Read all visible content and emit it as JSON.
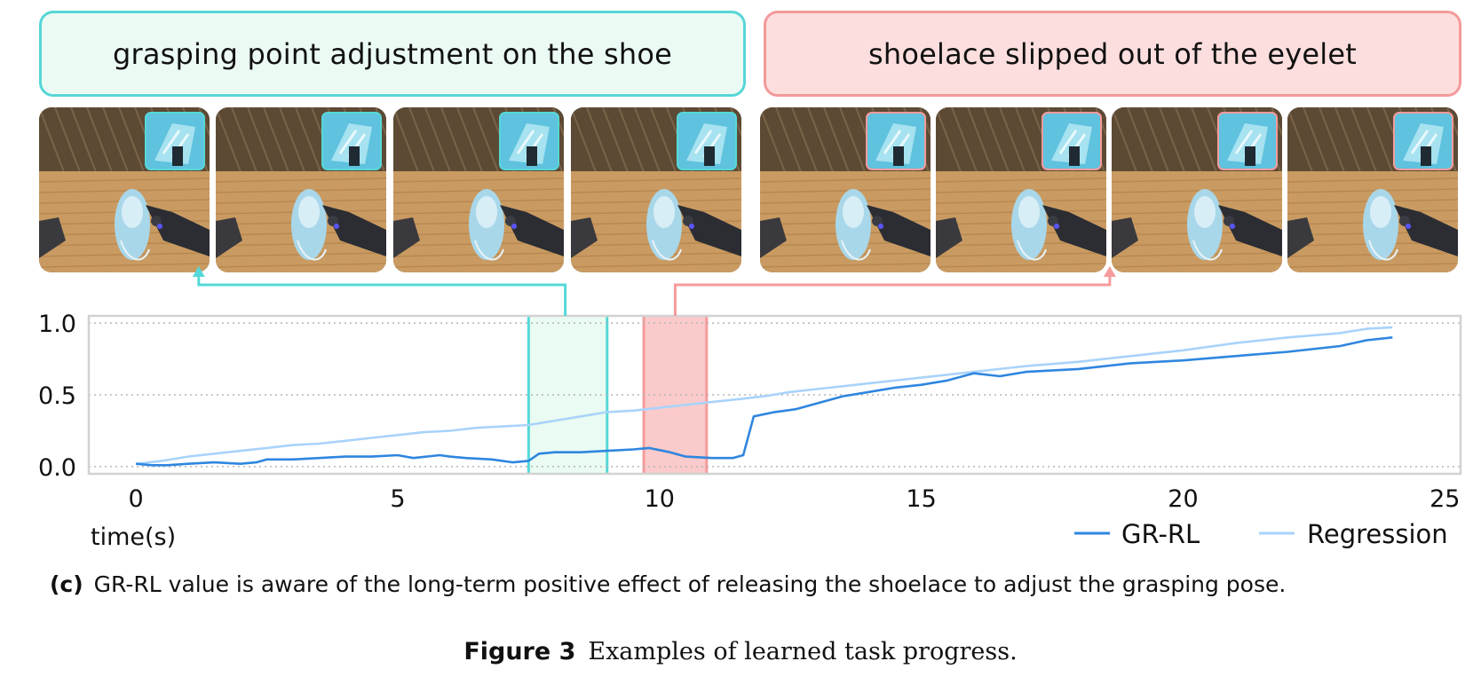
{
  "banners": {
    "left": "grasping point adjustment on the shoe",
    "right": "shoelace slipped out of the eyelet"
  },
  "frames": [
    {
      "group": "left"
    },
    {
      "group": "left"
    },
    {
      "group": "left"
    },
    {
      "group": "left"
    },
    {
      "group": "right"
    },
    {
      "group": "right"
    },
    {
      "group": "right"
    },
    {
      "group": "right"
    }
  ],
  "colors": {
    "teal": "#55d8d8",
    "salmon": "#f59b9b",
    "grrl": "#2f86df",
    "regression": "#a9d3fa"
  },
  "chart_data": {
    "type": "line",
    "xlabel": "time(s)",
    "ylabel": "",
    "xlim": [
      -0.9,
      25.3
    ],
    "ylim": [
      -0.05,
      1.05
    ],
    "xticks": [
      0,
      5,
      10,
      15,
      20,
      25
    ],
    "yticks": [
      0.0,
      0.5,
      1.0
    ],
    "ytick_labels": [
      "0.0",
      "0.5",
      "1.0"
    ],
    "grid": "horizontal dotted",
    "legend": "bottom-right",
    "highlight_regions": [
      {
        "x0": 7.5,
        "x1": 9.0,
        "color": "teal"
      },
      {
        "x0": 9.7,
        "x1": 10.9,
        "color": "salmon"
      }
    ],
    "series": [
      {
        "name": "GR-RL",
        "color": "#2f86df",
        "x": [
          0,
          0.3,
          0.6,
          1.0,
          1.5,
          2.0,
          2.3,
          2.5,
          3.0,
          3.5,
          4.0,
          4.5,
          5.0,
          5.3,
          5.8,
          6.0,
          6.3,
          6.8,
          7.2,
          7.5,
          7.7,
          8.0,
          8.5,
          9.0,
          9.5,
          9.8,
          10.2,
          10.5,
          11.0,
          11.4,
          11.6,
          11.8,
          12.2,
          12.6,
          13.0,
          13.5,
          14.0,
          14.5,
          15.0,
          15.5,
          16.0,
          16.5,
          17.0,
          18.0,
          19.0,
          20.0,
          21.0,
          22.0,
          23.0,
          23.5,
          24.0
        ],
        "y": [
          0.02,
          0.01,
          0.01,
          0.02,
          0.03,
          0.02,
          0.03,
          0.05,
          0.05,
          0.06,
          0.07,
          0.07,
          0.08,
          0.06,
          0.08,
          0.07,
          0.06,
          0.05,
          0.03,
          0.04,
          0.09,
          0.1,
          0.1,
          0.11,
          0.12,
          0.13,
          0.1,
          0.07,
          0.06,
          0.06,
          0.08,
          0.35,
          0.38,
          0.4,
          0.44,
          0.49,
          0.52,
          0.55,
          0.57,
          0.6,
          0.65,
          0.63,
          0.66,
          0.68,
          0.72,
          0.74,
          0.77,
          0.8,
          0.84,
          0.88,
          0.9
        ]
      },
      {
        "name": "Regression",
        "color": "#a9d3fa",
        "x": [
          0,
          0.5,
          1.0,
          1.5,
          2.0,
          2.5,
          3.0,
          3.5,
          4.0,
          4.5,
          5.0,
          5.5,
          6.0,
          6.5,
          7.0,
          7.5,
          8.0,
          8.5,
          9.0,
          9.5,
          10.0,
          10.5,
          11.0,
          11.5,
          12.0,
          12.5,
          13.0,
          13.5,
          14.0,
          14.5,
          15.0,
          15.5,
          16.0,
          17.0,
          18.0,
          19.0,
          20.0,
          21.0,
          22.0,
          23.0,
          23.5,
          24.0
        ],
        "y": [
          0.02,
          0.04,
          0.07,
          0.09,
          0.11,
          0.13,
          0.15,
          0.16,
          0.18,
          0.2,
          0.22,
          0.24,
          0.25,
          0.27,
          0.28,
          0.29,
          0.32,
          0.35,
          0.38,
          0.39,
          0.41,
          0.43,
          0.45,
          0.47,
          0.49,
          0.52,
          0.54,
          0.56,
          0.58,
          0.6,
          0.62,
          0.64,
          0.66,
          0.7,
          0.73,
          0.77,
          0.81,
          0.86,
          0.9,
          0.93,
          0.96,
          0.97
        ]
      }
    ]
  },
  "captions": {
    "sub_label": "(c)",
    "sub_text": "GR-RL value is aware of the long-term positive effect of releasing the shoelace to adjust the grasping pose.",
    "fig_label": "Figure 3",
    "fig_text": "Examples of learned task progress."
  }
}
